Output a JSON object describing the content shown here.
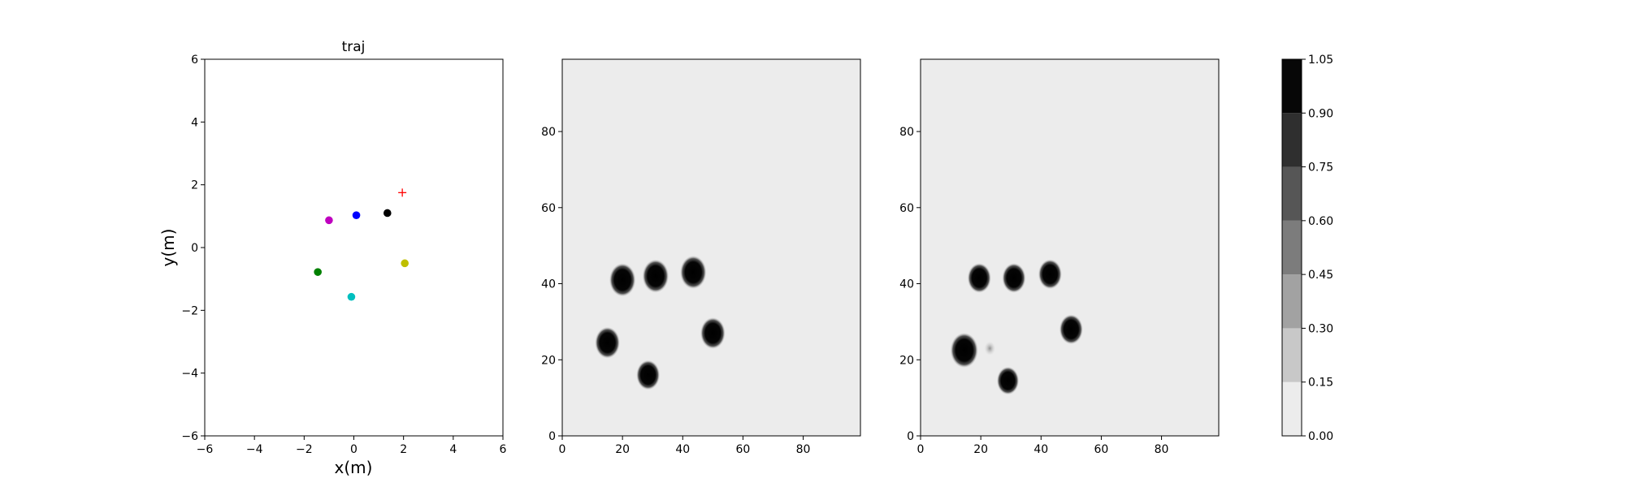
{
  "chart_data": [
    {
      "type": "scatter",
      "title": "traj",
      "xlabel": "x(m)",
      "ylabel": "y(m)",
      "xlim": [
        -6,
        6
      ],
      "ylim": [
        -6,
        6
      ],
      "xticks": [
        -6,
        -4,
        -2,
        0,
        2,
        4,
        6
      ],
      "yticks": [
        -6,
        -4,
        -2,
        0,
        2,
        4,
        6
      ],
      "xtick_labels": [
        "−6",
        "−4",
        "−2",
        "0",
        "2",
        "4",
        "6"
      ],
      "ytick_labels": [
        "−6",
        "−4",
        "−2",
        "0",
        "2",
        "4",
        "6"
      ],
      "grid": false,
      "points": [
        {
          "x": -1.0,
          "y": 0.87,
          "color": "#bf00bf",
          "marker": "dot"
        },
        {
          "x": 0.1,
          "y": 1.03,
          "color": "#0000ff",
          "marker": "dot"
        },
        {
          "x": 1.35,
          "y": 1.1,
          "color": "#000000",
          "marker": "dot"
        },
        {
          "x": 2.05,
          "y": -0.5,
          "color": "#bfbf00",
          "marker": "dot"
        },
        {
          "x": -1.45,
          "y": -0.78,
          "color": "#008000",
          "marker": "dot"
        },
        {
          "x": -0.1,
          "y": -1.57,
          "color": "#00bfbf",
          "marker": "dot"
        },
        {
          "x": 1.95,
          "y": 1.75,
          "color": "#ff0000",
          "marker": "plus"
        }
      ]
    },
    {
      "type": "heatmap",
      "title": "",
      "xlim": [
        0,
        99
      ],
      "ylim": [
        0,
        99
      ],
      "xticks": [
        0,
        20,
        40,
        60,
        80
      ],
      "yticks": [
        0,
        20,
        40,
        60,
        80
      ],
      "xtick_labels": [
        "0",
        "20",
        "40",
        "60",
        "80"
      ],
      "ytick_labels": [
        "0",
        "20",
        "40",
        "60",
        "80"
      ],
      "background_value": 0.08,
      "blobs": [
        {
          "x": 20,
          "y": 41,
          "r": 3.8,
          "value": 1.0
        },
        {
          "x": 31,
          "y": 42,
          "r": 3.8,
          "value": 1.0
        },
        {
          "x": 43.5,
          "y": 43,
          "r": 3.8,
          "value": 1.0
        },
        {
          "x": 15,
          "y": 24.5,
          "r": 3.6,
          "value": 1.0
        },
        {
          "x": 50,
          "y": 27,
          "r": 3.6,
          "value": 1.0
        },
        {
          "x": 28.5,
          "y": 16,
          "r": 3.4,
          "value": 1.0
        }
      ]
    },
    {
      "type": "heatmap",
      "title": "",
      "xlim": [
        0,
        99
      ],
      "ylim": [
        0,
        99
      ],
      "xticks": [
        0,
        20,
        40,
        60,
        80
      ],
      "yticks": [
        0,
        20,
        40,
        60,
        80
      ],
      "xtick_labels": [
        "0",
        "20",
        "40",
        "60",
        "80"
      ],
      "ytick_labels": [
        "0",
        "20",
        "40",
        "60",
        "80"
      ],
      "background_value": 0.08,
      "blobs": [
        {
          "x": 19.5,
          "y": 41.5,
          "r": 3.4,
          "value": 1.0
        },
        {
          "x": 31,
          "y": 41.5,
          "r": 3.4,
          "value": 1.0
        },
        {
          "x": 43,
          "y": 42.5,
          "r": 3.4,
          "value": 1.0
        },
        {
          "x": 50,
          "y": 28,
          "r": 3.4,
          "value": 1.0
        },
        {
          "x": 14.5,
          "y": 22.5,
          "r": 4.0,
          "value": 1.0
        },
        {
          "x": 29,
          "y": 14.5,
          "r": 3.2,
          "value": 1.0
        },
        {
          "x": 23,
          "y": 23,
          "r": 1.6,
          "value": 0.3
        }
      ]
    }
  ],
  "colorbar": {
    "levels": [
      0.0,
      0.15,
      0.3,
      0.45,
      0.6,
      0.75,
      0.9,
      1.05
    ],
    "tick_labels": [
      "0.00",
      "0.15",
      "0.30",
      "0.45",
      "0.60",
      "0.75",
      "0.90",
      "1.05"
    ],
    "colors": [
      "#ececec",
      "#c8c8c8",
      "#a2a2a2",
      "#7c7c7c",
      "#565656",
      "#2f2f2f",
      "#070707"
    ]
  }
}
